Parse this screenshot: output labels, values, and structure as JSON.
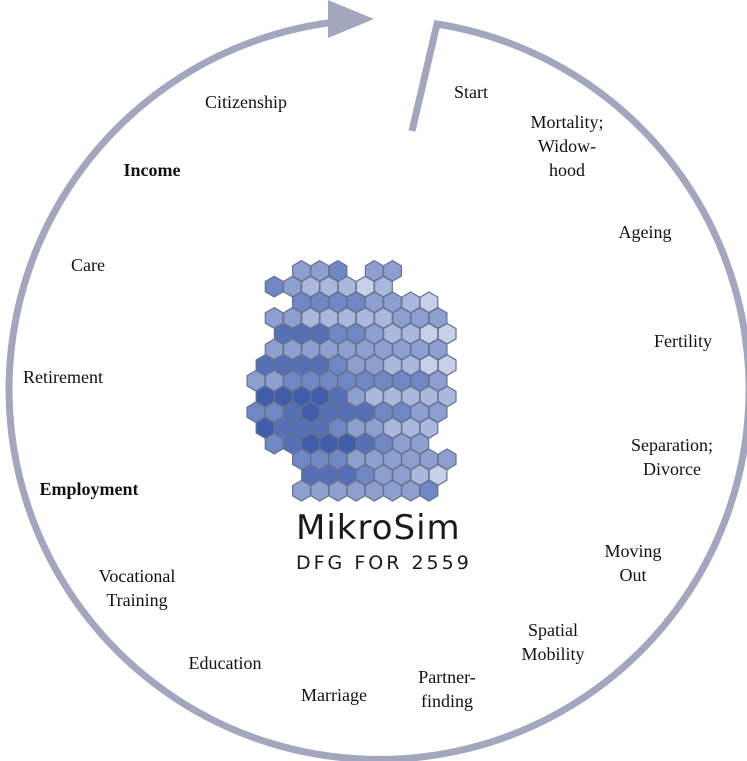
{
  "stages": [
    {
      "lines": [
        "Start"
      ],
      "bold": false
    },
    {
      "lines": [
        "Mortality;",
        "Widow-",
        "hood"
      ],
      "bold": false
    },
    {
      "lines": [
        "Ageing"
      ],
      "bold": false
    },
    {
      "lines": [
        "Fertility"
      ],
      "bold": false
    },
    {
      "lines": [
        "Separation;",
        "Divorce"
      ],
      "bold": false
    },
    {
      "lines": [
        "Moving",
        "Out"
      ],
      "bold": false
    },
    {
      "lines": [
        "Spatial",
        "Mobility"
      ],
      "bold": false
    },
    {
      "lines": [
        "Partner-",
        "finding"
      ],
      "bold": false
    },
    {
      "lines": [
        "Marriage"
      ],
      "bold": false
    },
    {
      "lines": [
        "Education"
      ],
      "bold": false
    },
    {
      "lines": [
        "Vocational",
        "Training"
      ],
      "bold": false
    },
    {
      "lines": [
        "Employment"
      ],
      "bold": true
    },
    {
      "lines": [
        "Retirement"
      ],
      "bold": false
    },
    {
      "lines": [
        "Care"
      ],
      "bold": false
    },
    {
      "lines": [
        "Income"
      ],
      "bold": true
    },
    {
      "lines": [
        "Citizenship"
      ],
      "bold": false
    }
  ],
  "logo": {
    "name": "MikroSim",
    "subtitle": "DFG FOR 2559",
    "hex_colors": [
      "#e3e8f3",
      "#c6d0e8",
      "#a9b8dc",
      "#8c9fcf",
      "#6f87c3",
      "#5570b5",
      "#3f5da8"
    ]
  },
  "colors": {
    "ring": "#a2a7bd"
  }
}
